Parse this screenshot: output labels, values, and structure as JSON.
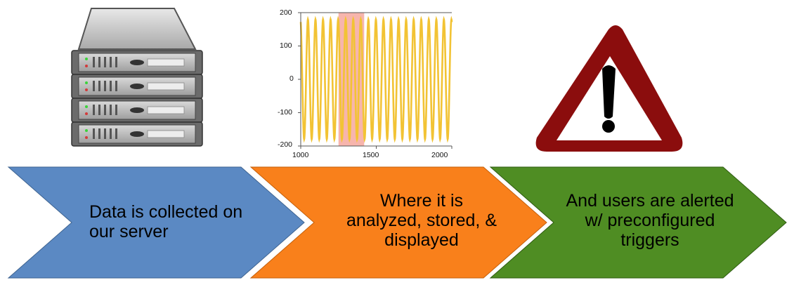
{
  "steps": [
    {
      "text": "Data is collected on\n  our server",
      "color": "#5b89c3"
    },
    {
      "text": "Where it is\nanalyzed, stored, &\ndisplayed",
      "color": "#f9801b"
    },
    {
      "text": "And users are alerted\nw/ preconfigured\ntriggers",
      "color": "#4f8d23"
    }
  ],
  "icons": {
    "server": "server-rack-icon",
    "chart": "sine-wave-chart-icon",
    "warning": "warning-triangle-icon"
  },
  "colors": {
    "wave": "#f2c334",
    "highlight": "#f7b5ad",
    "warning_border": "#8b0d0d",
    "server_body": "#c4c4c4"
  },
  "chart_data": {
    "type": "line",
    "title": "",
    "xlabel": "",
    "ylabel": "",
    "xlim": [
      1000,
      2000
    ],
    "ylim": [
      -200,
      200
    ],
    "x_ticks": [
      "1000",
      "1500",
      "2000"
    ],
    "y_ticks": [
      "200",
      "100",
      "0",
      "-100",
      "-200"
    ],
    "series": [
      {
        "amplitude": 180,
        "cycles": 20
      }
    ],
    "highlight_range": [
      1250,
      1420
    ]
  }
}
